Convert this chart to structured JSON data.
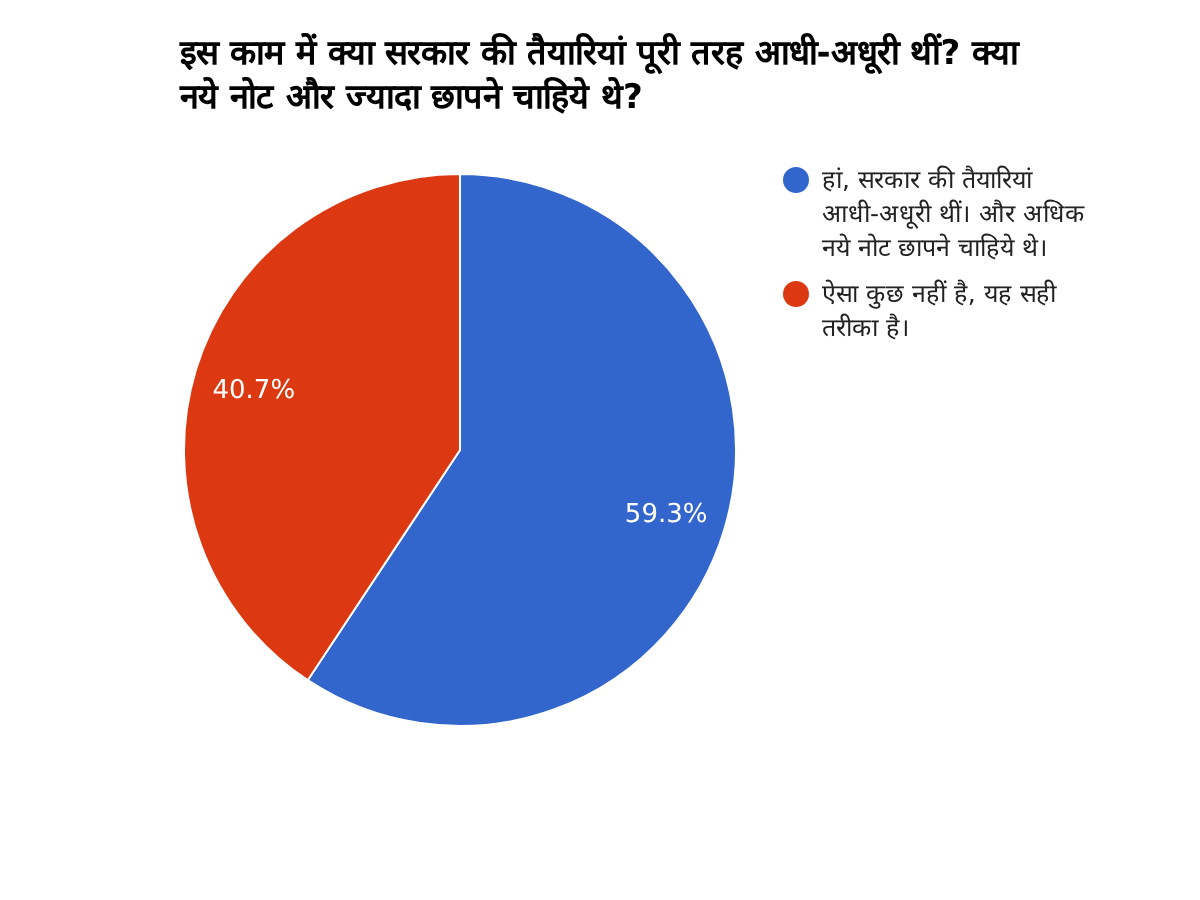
{
  "chart_data": {
    "type": "pie",
    "title": "इस काम में क्या सरकार की तैयारियां पूरी तरह आधी-अधूरी थीं? क्या नये नोट और ज्यादा छापने चाहिये थे?",
    "categories": [
      "हां, सरकार की तैयारियां आधी-अधूरी थीं। और अधिक नये नोट छापने चाहिये थे।",
      "ऐसा कुछ नहीं है, यह सही तरीका है।"
    ],
    "values": [
      59.3,
      40.7
    ],
    "colors": [
      "#3366cc",
      "#dc3912"
    ],
    "value_labels": [
      "59.3%",
      "40.7%"
    ],
    "legend": "right"
  }
}
